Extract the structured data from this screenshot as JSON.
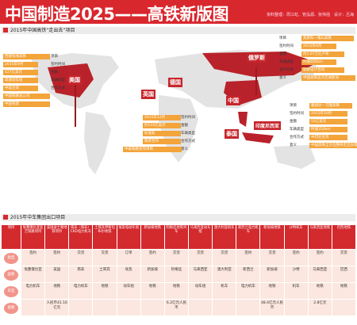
{
  "header": {
    "title": "中国制造2025——高铁新版图",
    "credits": "资料整理：周江虹、管泓源、张伟强　设计：吕海"
  },
  "map_section": {
    "title": "2015年中国高铁“走出去”项目"
  },
  "map": {
    "countries": {
      "usa": "美国",
      "uk": "英国",
      "germany": "德国",
      "russia": "俄罗斯",
      "china": "中国",
      "thailand": "泰国",
      "indonesia": "印度尼西亚"
    },
    "left_fields": [
      "项目",
      "签约时间",
      "金额",
      "车辆类型",
      "合作方式"
    ],
    "left_values": [
      "西部快线高铁",
      "2015年9月",
      "127亿美元",
      "高速动车组",
      "中美合资",
      "中国铁路总公司",
      "中国铁建"
    ],
    "russia_fields": [
      "项目",
      "签约时间",
      "金额",
      "车辆类型",
      "合作方式",
      "意义"
    ],
    "russia_values": [
      "莫斯科—喀山高铁",
      "2015年6月",
      "约1.07万亿卢布",
      "时速400km",
      "勘察设计合同",
      "中国高铁首次走进欧洲"
    ],
    "mid_fields": [
      "签约时间",
      "金额",
      "车辆类型",
      "合作方式",
      "意义"
    ],
    "mid_values": [
      "2015年12月",
      "约110亿美元",
      "标准轨",
      "政府合作",
      "中泰铁路合作项目"
    ],
    "indonesia_fields": [
      "项目",
      "签约时间",
      "金额",
      "车辆类型",
      "合作方式",
      "意义"
    ],
    "indonesia_values": [
      "雅加达—万隆高铁",
      "2015年10月",
      "55亿美元",
      "时速350km",
      "中印尼合资",
      "中国高铁全方位整体走出去第一单"
    ]
  },
  "table_section": {
    "title": "2015年中车集团出口项目"
  },
  "table": {
    "headers": [
      "项目",
      "埃塞俄比亚亚吉铁路项目",
      "美国波士顿地铁项目",
      "南非（南非）CKD电力机车",
      "土耳其伊斯坦布尔地铁",
      "埃及电动车组",
      "新加坡地铁",
      "阿根廷地铁列车",
      "马来西亚动车组",
      "澳大利亚机车",
      "新西兰电力机车",
      "新加坡地铁",
      "沙特机车",
      "马来西亚地铁",
      "巴西地铁"
    ],
    "row_labels": [
      "类型",
      "国家",
      "车型",
      "金额"
    ],
    "rows": [
      [
        "签约",
        "签约",
        "交货",
        "交货",
        "订单",
        "签约",
        "交货",
        "交货",
        "交货",
        "签约",
        "交货",
        "签约",
        "签约",
        "交货"
      ],
      [
        "埃塞俄比亚",
        "美国",
        "南非",
        "土耳其",
        "埃及",
        "新加坡",
        "阿根廷",
        "马来西亚",
        "澳大利亚",
        "新西兰",
        "新加坡",
        "沙特",
        "马来西亚",
        "巴西"
      ],
      [
        "电力机车",
        "地铁",
        "电力机车",
        "地铁",
        "动车组",
        "地铁",
        "地铁",
        "动车组",
        "机车",
        "电力机车",
        "地铁",
        "机车",
        "地铁",
        "地铁"
      ],
      [
        "",
        "人民币41.16亿元",
        "",
        "",
        "",
        "",
        "6.2亿元人民币",
        "",
        "",
        "",
        "48.4亿元人民币",
        "",
        "2.8亿元",
        ""
      ]
    ]
  }
}
